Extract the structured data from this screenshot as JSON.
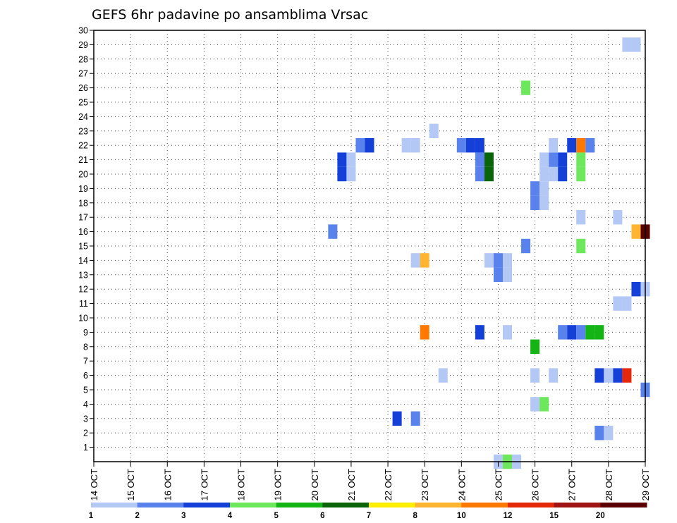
{
  "chart_data": {
    "type": "heatmap",
    "title": "GEFS 6hr padavine po ansamblima Vrsac",
    "xlabel": "",
    "ylabel": "",
    "x_unit": "days (6-hour steps)",
    "x_range": [
      14,
      29
    ],
    "y_range": [
      0,
      30
    ],
    "x_ticks": [
      "14 OCT",
      "15 OCT",
      "16 OCT",
      "17 OCT",
      "18 OCT",
      "19 OCT",
      "20 OCT",
      "21 OCT",
      "22 OCT",
      "23 OCT",
      "24 OCT",
      "25 OCT",
      "26 OCT",
      "27 OCT",
      "28 OCT",
      "29 OCT"
    ],
    "y_ticks": [
      "1",
      "2",
      "3",
      "4",
      "5",
      "6",
      "7",
      "8",
      "9",
      "10",
      "11",
      "12",
      "13",
      "14",
      "15",
      "16",
      "17",
      "18",
      "19",
      "20",
      "21",
      "22",
      "23",
      "24",
      "25",
      "26",
      "27",
      "28",
      "29",
      "30"
    ],
    "grid": true,
    "colorbar": {
      "placement": "bottom",
      "boundary_labels": [
        "1",
        "2",
        "3",
        "4",
        "5",
        "6",
        "7",
        "8",
        "10",
        "12",
        "15",
        "20"
      ],
      "colors": [
        "#b4c8f5",
        "#5a82ec",
        "#1440d8",
        "#6de85c",
        "#14b414",
        "#0a640a",
        "#ffee00",
        "#ffb432",
        "#ff7800",
        "#e6280a",
        "#a01414",
        "#5a0000"
      ]
    },
    "cells": [
      {
        "t": 25.0,
        "m": 0,
        "c": 0
      },
      {
        "t": 25.25,
        "m": 0,
        "c": 3
      },
      {
        "t": 25.5,
        "m": 0,
        "c": 0
      },
      {
        "t": 27.75,
        "m": 2,
        "c": 1
      },
      {
        "t": 28.0,
        "m": 2,
        "c": 0
      },
      {
        "t": 22.25,
        "m": 3,
        "c": 2
      },
      {
        "t": 22.75,
        "m": 3,
        "c": 1
      },
      {
        "t": 26.0,
        "m": 4,
        "c": 0
      },
      {
        "t": 26.25,
        "m": 4,
        "c": 3
      },
      {
        "t": 29.0,
        "m": 5,
        "c": 1
      },
      {
        "t": 23.5,
        "m": 6,
        "c": 0
      },
      {
        "t": 26.0,
        "m": 6,
        "c": 0
      },
      {
        "t": 26.5,
        "m": 6,
        "c": 0
      },
      {
        "t": 27.75,
        "m": 6,
        "c": 2
      },
      {
        "t": 28.0,
        "m": 6,
        "c": 0
      },
      {
        "t": 28.25,
        "m": 6,
        "c": 2
      },
      {
        "t": 28.5,
        "m": 6,
        "c": 9
      },
      {
        "t": 26.0,
        "m": 8,
        "c": 4
      },
      {
        "t": 23.0,
        "m": 9,
        "c": 8
      },
      {
        "t": 24.5,
        "m": 9,
        "c": 2
      },
      {
        "t": 25.25,
        "m": 9,
        "c": 0
      },
      {
        "t": 26.75,
        "m": 9,
        "c": 1
      },
      {
        "t": 27.0,
        "m": 9,
        "c": 2
      },
      {
        "t": 27.25,
        "m": 9,
        "c": 1
      },
      {
        "t": 27.5,
        "m": 9,
        "c": 4
      },
      {
        "t": 27.75,
        "m": 9,
        "c": 4
      },
      {
        "t": 28.25,
        "m": 11,
        "c": 0
      },
      {
        "t": 28.5,
        "m": 11,
        "c": 0
      },
      {
        "t": 28.75,
        "m": 12,
        "c": 2
      },
      {
        "t": 29.0,
        "m": 12,
        "c": 0
      },
      {
        "t": 25.0,
        "m": 13,
        "c": 1
      },
      {
        "t": 25.25,
        "m": 13,
        "c": 0
      },
      {
        "t": 22.75,
        "m": 14,
        "c": 0
      },
      {
        "t": 23.0,
        "m": 14,
        "c": 7
      },
      {
        "t": 24.75,
        "m": 14,
        "c": 0
      },
      {
        "t": 25.0,
        "m": 14,
        "c": 1
      },
      {
        "t": 25.25,
        "m": 14,
        "c": 0
      },
      {
        "t": 25.75,
        "m": 15,
        "c": 1
      },
      {
        "t": 27.25,
        "m": 15,
        "c": 3
      },
      {
        "t": 20.5,
        "m": 16,
        "c": 1
      },
      {
        "t": 28.75,
        "m": 16,
        "c": 7
      },
      {
        "t": 29.0,
        "m": 16,
        "c": 11
      },
      {
        "t": 27.25,
        "m": 17,
        "c": 0
      },
      {
        "t": 28.25,
        "m": 17,
        "c": 0
      },
      {
        "t": 26.0,
        "m": 18,
        "c": 1
      },
      {
        "t": 26.25,
        "m": 18,
        "c": 0
      },
      {
        "t": 26.0,
        "m": 19,
        "c": 1
      },
      {
        "t": 26.25,
        "m": 19,
        "c": 0
      },
      {
        "t": 20.75,
        "m": 20,
        "c": 2
      },
      {
        "t": 21.0,
        "m": 20,
        "c": 0
      },
      {
        "t": 24.5,
        "m": 20,
        "c": 1
      },
      {
        "t": 24.75,
        "m": 20,
        "c": 5
      },
      {
        "t": 26.25,
        "m": 20,
        "c": 0
      },
      {
        "t": 26.5,
        "m": 20,
        "c": 0
      },
      {
        "t": 26.75,
        "m": 20,
        "c": 2
      },
      {
        "t": 27.25,
        "m": 20,
        "c": 3
      },
      {
        "t": 20.75,
        "m": 21,
        "c": 2
      },
      {
        "t": 21.0,
        "m": 21,
        "c": 0
      },
      {
        "t": 24.5,
        "m": 21,
        "c": 1
      },
      {
        "t": 24.75,
        "m": 21,
        "c": 5
      },
      {
        "t": 26.25,
        "m": 21,
        "c": 0
      },
      {
        "t": 26.5,
        "m": 21,
        "c": 1
      },
      {
        "t": 26.75,
        "m": 21,
        "c": 2
      },
      {
        "t": 27.25,
        "m": 21,
        "c": 3
      },
      {
        "t": 21.25,
        "m": 22,
        "c": 1
      },
      {
        "t": 21.5,
        "m": 22,
        "c": 2
      },
      {
        "t": 22.5,
        "m": 22,
        "c": 0
      },
      {
        "t": 22.75,
        "m": 22,
        "c": 0
      },
      {
        "t": 24.0,
        "m": 22,
        "c": 1
      },
      {
        "t": 24.25,
        "m": 22,
        "c": 2
      },
      {
        "t": 24.5,
        "m": 22,
        "c": 2
      },
      {
        "t": 26.5,
        "m": 22,
        "c": 0
      },
      {
        "t": 27.0,
        "m": 22,
        "c": 2
      },
      {
        "t": 27.25,
        "m": 22,
        "c": 8
      },
      {
        "t": 27.5,
        "m": 22,
        "c": 1
      },
      {
        "t": 23.25,
        "m": 23,
        "c": 0
      },
      {
        "t": 25.75,
        "m": 26,
        "c": 3
      },
      {
        "t": 28.5,
        "m": 29,
        "c": 0
      },
      {
        "t": 28.75,
        "m": 29,
        "c": 0
      }
    ]
  }
}
